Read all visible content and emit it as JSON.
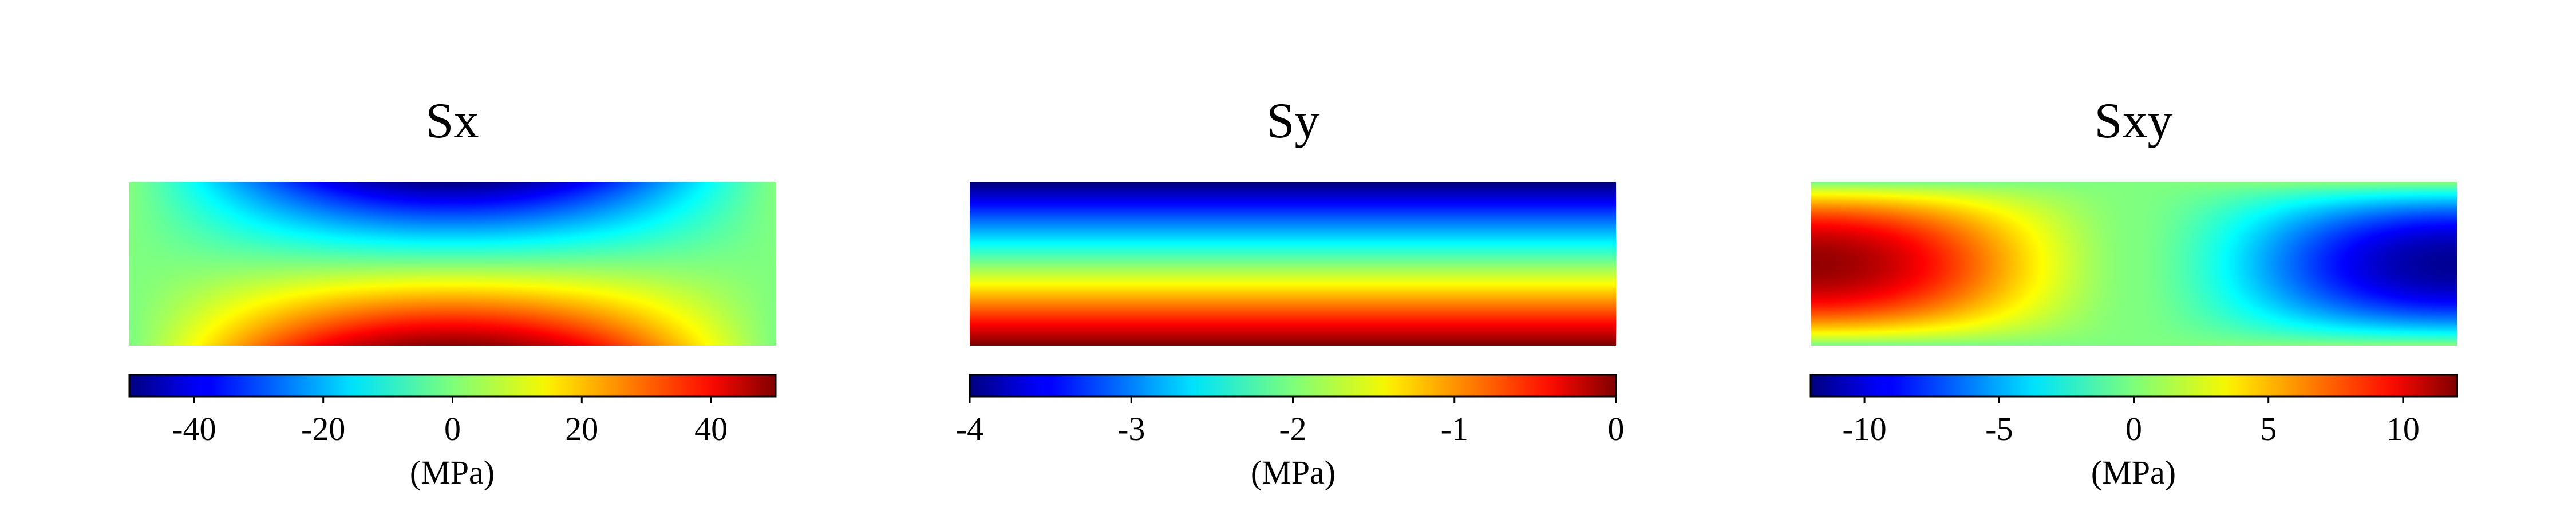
{
  "chart_data": [
    {
      "type": "heatmap",
      "title": "Sx",
      "field": "stress-x",
      "colormap": "jet",
      "colorbar": {
        "min": -50,
        "max": 50,
        "ticks": [
          -40,
          -20,
          0,
          20,
          40
        ],
        "tick_labels": [
          "-40",
          "-20",
          "0",
          "20",
          "40"
        ],
        "label": "(MPa)"
      }
    },
    {
      "type": "heatmap",
      "title": "Sy",
      "field": "stress-y",
      "colormap": "jet",
      "colorbar": {
        "min": -4,
        "max": 0,
        "ticks": [
          -4,
          -3,
          -2,
          -1,
          0
        ],
        "tick_labels": [
          "-4",
          "-3",
          "-2",
          "-1",
          "0"
        ],
        "label": "(MPa)"
      }
    },
    {
      "type": "heatmap",
      "title": "Sxy",
      "field": "stress-xy",
      "colormap": "jet",
      "colorbar": {
        "min": -12,
        "max": 12,
        "ticks": [
          -10,
          -5,
          0,
          5,
          10
        ],
        "tick_labels": [
          "-10",
          "-5",
          "0",
          "5",
          "10"
        ],
        "label": "(MPa)"
      }
    }
  ]
}
